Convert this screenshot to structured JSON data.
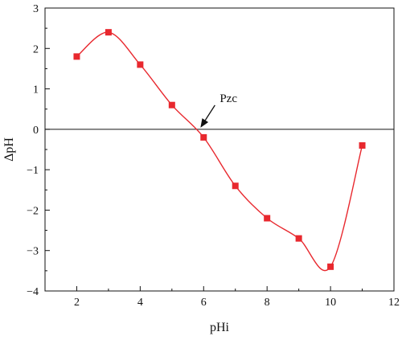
{
  "chart_data": {
    "type": "scatter",
    "xlabel": "pHi",
    "ylabel": "ΔpH",
    "xlim": [
      1,
      12
    ],
    "ylim": [
      -4,
      3
    ],
    "xticks": [
      2,
      4,
      6,
      8,
      10,
      12
    ],
    "yticks": [
      -4,
      -3,
      -2,
      -1,
      0,
      1,
      2,
      3
    ],
    "grid": false,
    "zero_line": true,
    "marker_color": "#e8282e",
    "line_color": "#e8282e",
    "series": [
      {
        "x": [
          2,
          3,
          4,
          5,
          6,
          7,
          8,
          9,
          10,
          11
        ],
        "y": [
          1.8,
          2.4,
          1.6,
          0.6,
          -0.2,
          -1.4,
          -2.2,
          -2.7,
          -3.4,
          -0.4
        ]
      }
    ],
    "annotations": [
      {
        "text": "Pzc",
        "target_x": 5.9,
        "target_y": 0
      }
    ]
  }
}
